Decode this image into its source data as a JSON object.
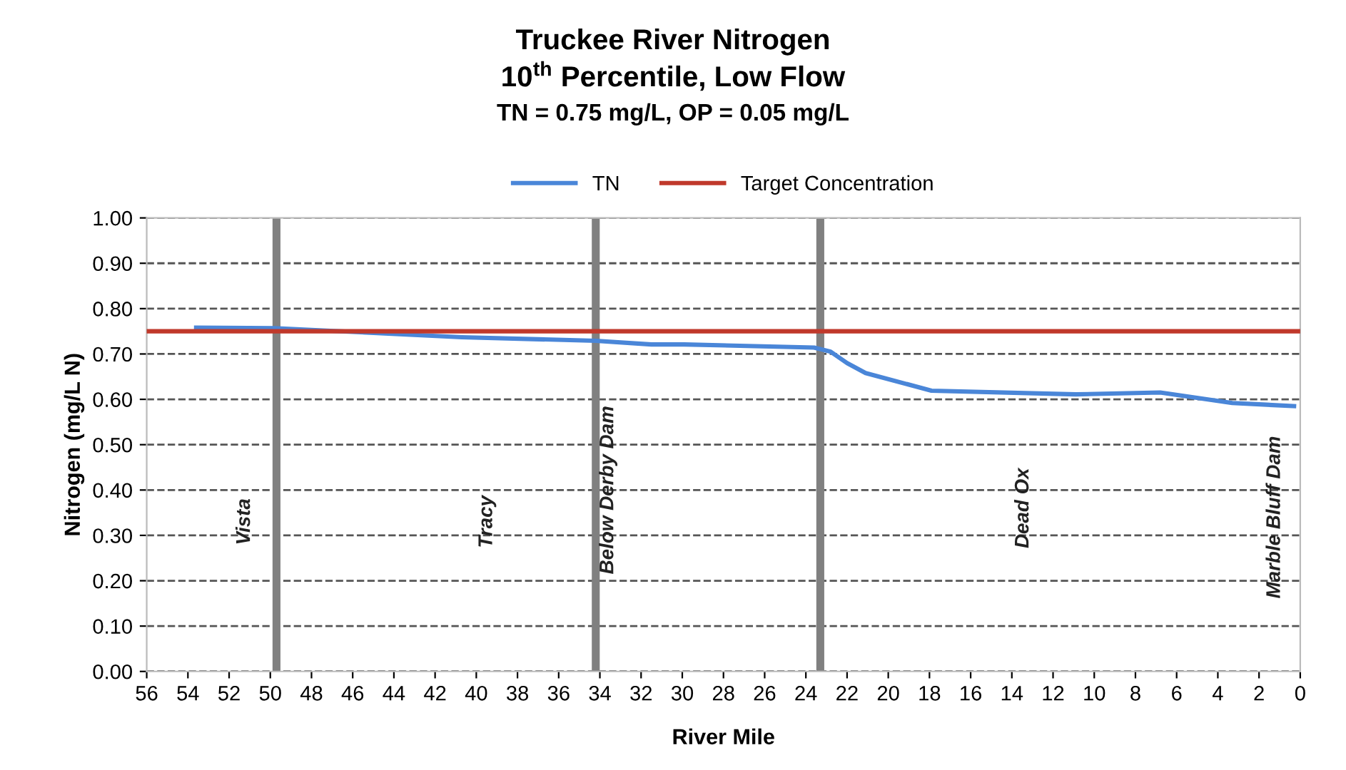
{
  "chart_data": {
    "type": "line",
    "title": "Truckee River Nitrogen\n10$^{th}$ Percentile, Low Flow",
    "subtitle": "TN = 0.75 mg/L, OP = 0.05 mg/L",
    "xlabel": "River Mile",
    "ylabel": "Nitrogen (mg/L N)",
    "series": [
      {
        "name": "TN",
        "color": "#4a86d8",
        "x": [
          53.6,
          49.8,
          40.7,
          34.2,
          31.5,
          29.9,
          23.6,
          22.8,
          22.0,
          21.1,
          17.9,
          10.9,
          6.8,
          3.3,
          0.3
        ],
        "values": [
          0.758,
          0.757,
          0.737,
          0.729,
          0.721,
          0.721,
          0.714,
          0.705,
          0.68,
          0.658,
          0.619,
          0.611,
          0.615,
          0.592,
          0.585
        ]
      },
      {
        "name": "Target Concentration",
        "color": "#c0392b",
        "x": [
          56,
          0
        ],
        "values": [
          0.75,
          0.75
        ]
      }
    ],
    "ref_lines": [
      {
        "axis": "x",
        "value": 49.7,
        "color": "#808080"
      },
      {
        "axis": "x",
        "value": 34.2,
        "color": "#808080"
      },
      {
        "axis": "x",
        "value": 23.3,
        "color": "#808080"
      }
    ],
    "annotations": [
      "Vista",
      "Tracy",
      "Below Derby Dam",
      "Dead Ox",
      "Marble Bluff Dam"
    ],
    "xlim": [
      56,
      0
    ],
    "xticks": [
      56,
      54,
      52,
      50,
      48,
      46,
      44,
      42,
      40,
      38,
      36,
      34,
      32,
      30,
      28,
      26,
      24,
      22,
      20,
      18,
      16,
      14,
      12,
      10,
      8,
      6,
      4,
      2,
      0
    ],
    "ylim": [
      0,
      1
    ],
    "yticks": [
      {
        "value": 0,
        "label": "0.00"
      },
      {
        "value": 0.1,
        "label": "0.10"
      },
      {
        "value": 0.2,
        "label": "0.20"
      },
      {
        "value": 0.3,
        "label": "0.30"
      },
      {
        "value": 0.4,
        "label": "0.40"
      },
      {
        "value": 0.5,
        "label": "0.50"
      },
      {
        "value": 0.6,
        "label": "0.60"
      },
      {
        "value": 0.7,
        "label": "0.70"
      },
      {
        "value": 0.8,
        "label": "0.80"
      },
      {
        "value": 0.9,
        "label": "0.90"
      },
      {
        "value": 1.0,
        "label": "1.00"
      }
    ],
    "grid": "y",
    "legend": "top",
    "line_style": "solid",
    "marker": "none"
  }
}
